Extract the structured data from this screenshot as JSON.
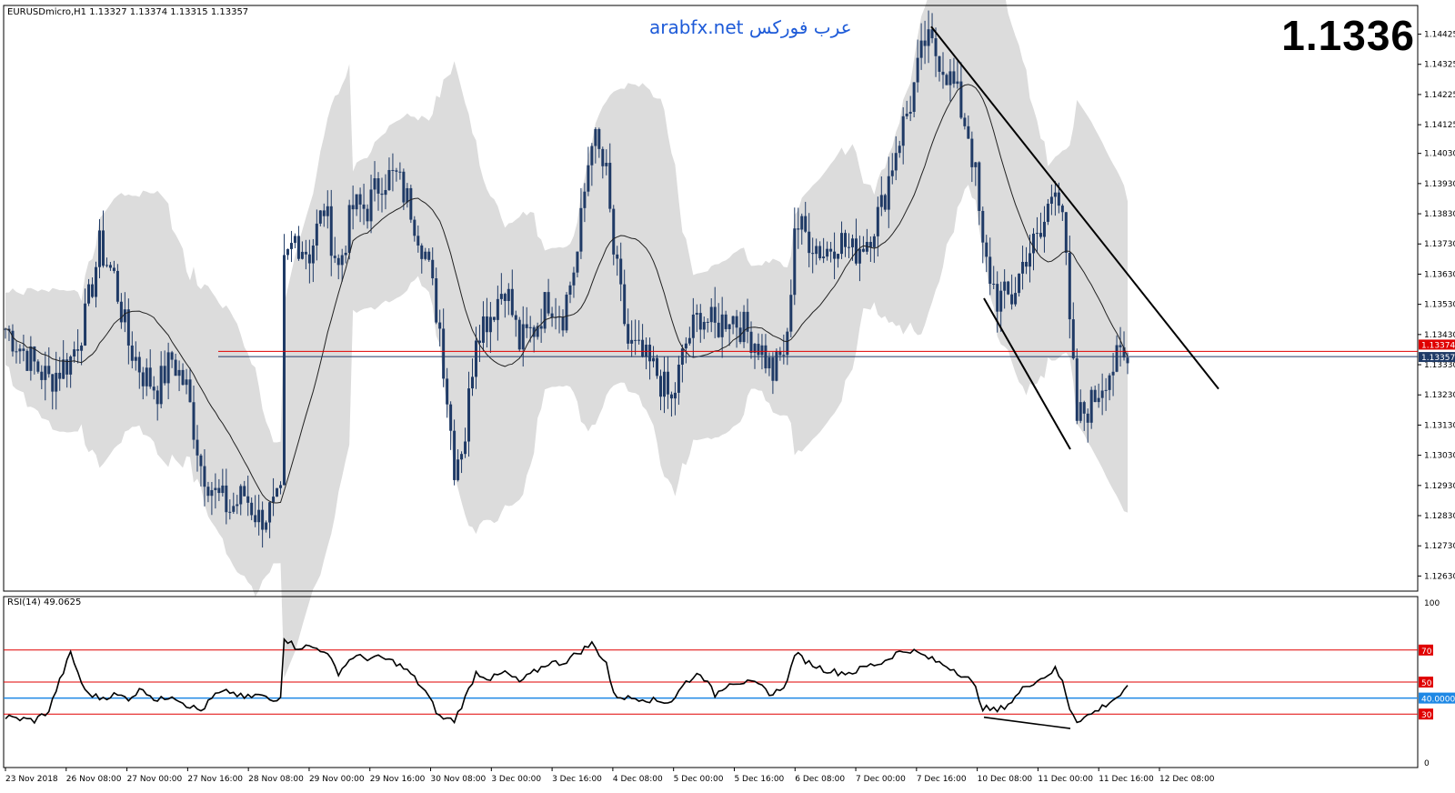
{
  "header": {
    "symbol_info": "EURUSDmicro,H1  1.13327 1.13374 1.13315 1.13357",
    "big_price": "1.1336",
    "watermark": "arabfx.net عرب فوركس"
  },
  "colors": {
    "candle": "#1f3a66",
    "band_fill": "#dcdcdc",
    "ma_line": "#222222",
    "ask_line": "#e00000",
    "bid_line": "#1f3a66",
    "rsi_level": "#e00000",
    "rsi_40": "#1e88e5",
    "trendline": "#000000",
    "watermark": "#1e5bd8"
  },
  "chart_data": [
    {
      "type": "candlestick",
      "name": "price",
      "ylim": [
        1.1258,
        1.1452
      ],
      "price_ticks": [
        "1.14425",
        "1.14325",
        "1.14225",
        "1.14125",
        "1.14030",
        "1.13930",
        "1.13830",
        "1.13730",
        "1.13630",
        "1.13530",
        "1.13430",
        "1.13330",
        "1.13230",
        "1.13130",
        "1.13030",
        "1.12930",
        "1.12830",
        "1.12730",
        "1.12630"
      ],
      "current_ask": "1.13374",
      "current_bid": "1.13357",
      "x_labels": [
        "23 Nov 2018",
        "26 Nov 08:00",
        "27 Nov 00:00",
        "27 Nov 16:00",
        "28 Nov 08:00",
        "29 Nov 00:00",
        "29 Nov 16:00",
        "30 Nov 08:00",
        "3 Dec 00:00",
        "3 Dec 16:00",
        "4 Dec 08:00",
        "5 Dec 00:00",
        "5 Dec 16:00",
        "6 Dec 08:00",
        "7 Dec 00:00",
        "7 Dec 16:00",
        "10 Dec 08:00",
        "11 Dec 00:00",
        "11 Dec 16:00",
        "12 Dec 08:00"
      ],
      "close_anchors": [
        [
          0,
          1.1345
        ],
        [
          8,
          1.1333
        ],
        [
          12,
          1.1328
        ],
        [
          18,
          1.1335
        ],
        [
          22,
          1.1348
        ],
        [
          26,
          1.1372
        ],
        [
          30,
          1.1362
        ],
        [
          34,
          1.134
        ],
        [
          38,
          1.133
        ],
        [
          42,
          1.1325
        ],
        [
          46,
          1.1335
        ],
        [
          50,
          1.1325
        ],
        [
          54,
          1.13
        ],
        [
          58,
          1.129
        ],
        [
          62,
          1.1285
        ],
        [
          66,
          1.129
        ],
        [
          70,
          1.1282
        ],
        [
          74,
          1.1285
        ],
        [
          76,
          1.1288
        ],
        [
          77,
          1.1365
        ],
        [
          80,
          1.1375
        ],
        [
          84,
          1.137
        ],
        [
          88,
          1.1385
        ],
        [
          92,
          1.1365
        ],
        [
          96,
          1.1385
        ],
        [
          100,
          1.1385
        ],
        [
          104,
          1.1395
        ],
        [
          108,
          1.1395
        ],
        [
          112,
          1.1385
        ],
        [
          116,
          1.137
        ],
        [
          120,
          1.1345
        ],
        [
          124,
          1.13
        ],
        [
          127,
          1.131
        ],
        [
          130,
          1.1345
        ],
        [
          134,
          1.135
        ],
        [
          138,
          1.136
        ],
        [
          142,
          1.134
        ],
        [
          146,
          1.1345
        ],
        [
          150,
          1.1355
        ],
        [
          154,
          1.135
        ],
        [
          158,
          1.137
        ],
        [
          162,
          1.141
        ],
        [
          166,
          1.1395
        ],
        [
          168,
          1.137
        ],
        [
          172,
          1.134
        ],
        [
          176,
          1.1335
        ],
        [
          180,
          1.133
        ],
        [
          184,
          1.132
        ],
        [
          188,
          1.134
        ],
        [
          192,
          1.135
        ],
        [
          196,
          1.1345
        ],
        [
          200,
          1.135
        ],
        [
          204,
          1.1345
        ],
        [
          208,
          1.134
        ],
        [
          212,
          1.133
        ],
        [
          216,
          1.134
        ],
        [
          218,
          1.138
        ],
        [
          222,
          1.1375
        ],
        [
          226,
          1.137
        ],
        [
          230,
          1.1375
        ],
        [
          234,
          1.137
        ],
        [
          238,
          1.1375
        ],
        [
          242,
          1.1385
        ],
        [
          246,
          1.1405
        ],
        [
          250,
          1.142
        ],
        [
          254,
          1.144
        ],
        [
          258,
          1.1435
        ],
        [
          262,
          1.1425
        ],
        [
          266,
          1.141
        ],
        [
          268,
          1.1395
        ],
        [
          270,
          1.137
        ],
        [
          274,
          1.1355
        ],
        [
          278,
          1.1355
        ],
        [
          282,
          1.137
        ],
        [
          286,
          1.1375
        ],
        [
          290,
          1.1395
        ],
        [
          292,
          1.1385
        ],
        [
          294,
          1.1345
        ],
        [
          296,
          1.1315
        ],
        [
          300,
          1.132
        ],
        [
          304,
          1.133
        ],
        [
          308,
          1.1335
        ],
        [
          310,
          1.1333
        ]
      ],
      "moving_average": "hourly",
      "envelope_band": "grey shaded"
    },
    {
      "type": "line",
      "name": "RSI(14) 49.0625",
      "ylim": [
        0,
        100
      ],
      "levels": [
        "100",
        "70",
        "50",
        "40.0000",
        "30",
        "0"
      ],
      "anchors": [
        [
          0,
          28
        ],
        [
          8,
          26
        ],
        [
          12,
          32
        ],
        [
          14,
          45
        ],
        [
          18,
          68
        ],
        [
          22,
          44
        ],
        [
          26,
          40
        ],
        [
          30,
          42
        ],
        [
          34,
          40
        ],
        [
          38,
          46
        ],
        [
          42,
          38
        ],
        [
          46,
          42
        ],
        [
          50,
          36
        ],
        [
          54,
          32
        ],
        [
          58,
          42
        ],
        [
          62,
          44
        ],
        [
          66,
          40
        ],
        [
          70,
          42
        ],
        [
          74,
          38
        ],
        [
          76,
          42
        ],
        [
          77,
          78
        ],
        [
          80,
          72
        ],
        [
          84,
          72
        ],
        [
          88,
          70
        ],
        [
          92,
          56
        ],
        [
          96,
          66
        ],
        [
          100,
          65
        ],
        [
          104,
          65
        ],
        [
          108,
          62
        ],
        [
          112,
          55
        ],
        [
          116,
          44
        ],
        [
          120,
          28
        ],
        [
          124,
          26
        ],
        [
          127,
          40
        ],
        [
          130,
          56
        ],
        [
          134,
          52
        ],
        [
          138,
          56
        ],
        [
          142,
          50
        ],
        [
          146,
          56
        ],
        [
          150,
          62
        ],
        [
          154,
          62
        ],
        [
          158,
          68
        ],
        [
          162,
          74
        ],
        [
          166,
          62
        ],
        [
          168,
          42
        ],
        [
          172,
          40
        ],
        [
          176,
          40
        ],
        [
          180,
          38
        ],
        [
          184,
          38
        ],
        [
          188,
          50
        ],
        [
          192,
          56
        ],
        [
          196,
          42
        ],
        [
          200,
          50
        ],
        [
          204,
          50
        ],
        [
          208,
          48
        ],
        [
          212,
          42
        ],
        [
          216,
          50
        ],
        [
          218,
          68
        ],
        [
          222,
          62
        ],
        [
          226,
          58
        ],
        [
          230,
          56
        ],
        [
          234,
          56
        ],
        [
          238,
          60
        ],
        [
          242,
          62
        ],
        [
          246,
          68
        ],
        [
          250,
          70
        ],
        [
          254,
          66
        ],
        [
          258,
          62
        ],
        [
          262,
          58
        ],
        [
          266,
          52
        ],
        [
          268,
          46
        ],
        [
          270,
          34
        ],
        [
          274,
          32
        ],
        [
          278,
          38
        ],
        [
          282,
          48
        ],
        [
          286,
          52
        ],
        [
          290,
          58
        ],
        [
          292,
          50
        ],
        [
          294,
          34
        ],
        [
          296,
          26
        ],
        [
          300,
          30
        ],
        [
          304,
          36
        ],
        [
          308,
          42
        ],
        [
          310,
          46
        ]
      ]
    }
  ]
}
